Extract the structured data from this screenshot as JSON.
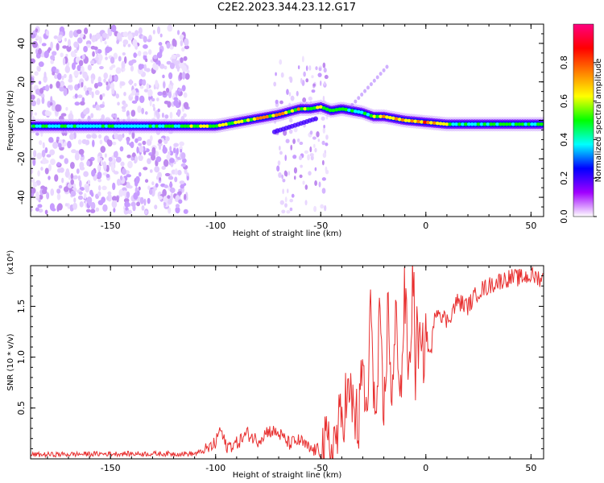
{
  "title": "C2E2.2023.344.23.12.G17",
  "chart_data": [
    {
      "type": "heatmap",
      "xlabel": "Height of straight line (km)",
      "ylabel": "Frequency (Hz)",
      "xlim": [
        -188,
        56
      ],
      "ylim": [
        -50,
        50
      ],
      "xticks": [
        -150,
        -100,
        -50,
        0,
        50
      ],
      "yticks": [
        -40,
        -20,
        0,
        20,
        40
      ],
      "ridge": {
        "description_free_points": true,
        "x": [
          -188,
          -160,
          -140,
          -120,
          -110,
          -100,
          -90,
          -80,
          -70,
          -60,
          -55,
          -50,
          -45,
          -40,
          -35,
          -30,
          -25,
          -20,
          -10,
          0,
          10,
          20,
          30,
          40,
          56
        ],
        "freq": [
          -3,
          -3,
          -3,
          -3,
          -3,
          -3,
          -1,
          1,
          3,
          6,
          6,
          7,
          5,
          6,
          5,
          4,
          2,
          2,
          0,
          -1,
          -2,
          -2,
          -2,
          -2,
          -2
        ],
        "amplitude": [
          0.45,
          0.45,
          0.4,
          0.5,
          0.55,
          0.6,
          0.6,
          0.7,
          0.7,
          0.65,
          0.6,
          0.55,
          0.6,
          0.6,
          0.5,
          0.4,
          0.5,
          0.75,
          0.7,
          0.8,
          0.6,
          0.5,
          0.5,
          0.5,
          0.5
        ]
      },
      "colorbar": {
        "label": "Normalized spectral amplitude",
        "range": [
          0,
          1
        ],
        "ticks": [
          "0.0",
          "0.2",
          "0.4",
          "0.6",
          "0.8"
        ],
        "colors": [
          "#ffffff",
          "#a000ff",
          "#0000ff",
          "#00ffff",
          "#00ff00",
          "#ffff00",
          "#ff8000",
          "#ff0000",
          "#ff0080"
        ]
      }
    },
    {
      "type": "line",
      "xlabel": "Height of straight line (km)",
      "ylabel": "SNR (10 * v/v)",
      "scale_label": "(x10⁴)",
      "xlim": [
        -188,
        56
      ],
      "ylim": [
        0,
        19000
      ],
      "xticks": [
        -150,
        -100,
        -50,
        0,
        50
      ],
      "yticks": [
        5000,
        10000,
        15000
      ],
      "ytick_labels": [
        "0.5",
        "1.0",
        "1.5"
      ],
      "color": "#e83030",
      "series": [
        {
          "x": [
            -188,
            -170,
            -150,
            -130,
            -110,
            -105,
            -100,
            -98,
            -95,
            -90,
            -85,
            -80,
            -75,
            -70,
            -65,
            -60,
            -55,
            -50,
            -45,
            -42,
            -40,
            -38,
            -35,
            -32,
            -30,
            -28,
            -26,
            -24,
            -22,
            -20,
            -18,
            -16,
            -14,
            -12,
            -10,
            -8,
            -6,
            -5,
            -4,
            -2,
            0,
            2,
            5,
            10,
            15,
            20,
            25,
            30,
            35,
            40,
            45,
            50,
            56
          ],
          "y": [
            400,
            450,
            500,
            500,
            500,
            800,
            1500,
            3000,
            1200,
            1500,
            2500,
            1800,
            2800,
            2500,
            1500,
            1800,
            900,
            800,
            1000,
            2500,
            4000,
            6000,
            5500,
            3000,
            9500,
            3000,
            16000,
            2000,
            13000,
            3500,
            15000,
            5500,
            14500,
            6000,
            16500,
            7500,
            19000,
            8000,
            13000,
            9000,
            12500,
            10000,
            15000,
            13500,
            15500,
            15000,
            16500,
            17000,
            17500,
            17800,
            17800,
            18000,
            17700
          ]
        }
      ]
    }
  ]
}
